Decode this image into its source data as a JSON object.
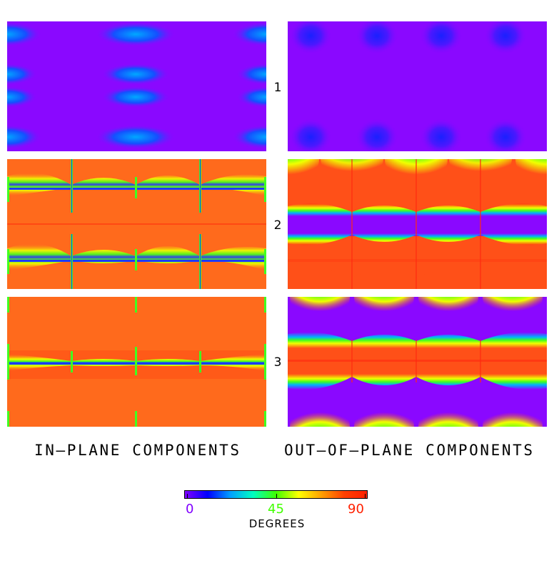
{
  "row_labels": [
    "1",
    "2",
    "3"
  ],
  "column_titles": {
    "left": "IN—PLANE COMPONENTS",
    "right": "OUT—OF—PLANE COMPONENTS"
  },
  "colorbar": {
    "title": "DEGREES",
    "ticks": [
      {
        "value": "0",
        "color": "#8000ff"
      },
      {
        "value": "45",
        "color": "#40ff00"
      },
      {
        "value": "90",
        "color": "#ff2000"
      }
    ],
    "range": [
      0,
      90
    ],
    "colormap": [
      "#8000ff",
      "#0000ff",
      "#00a0ff",
      "#00ffc0",
      "#40ff00",
      "#ffff00",
      "#ffa000",
      "#ff4000",
      "#ff2000"
    ]
  },
  "colors": {
    "violet": "#8a08ff",
    "blue": "#1a3cff",
    "cyan": "#00b0ff",
    "green": "#40ff20",
    "yellow": "#f0ff00",
    "orange": "#ff6a1c",
    "red": "#ff3a10"
  }
}
